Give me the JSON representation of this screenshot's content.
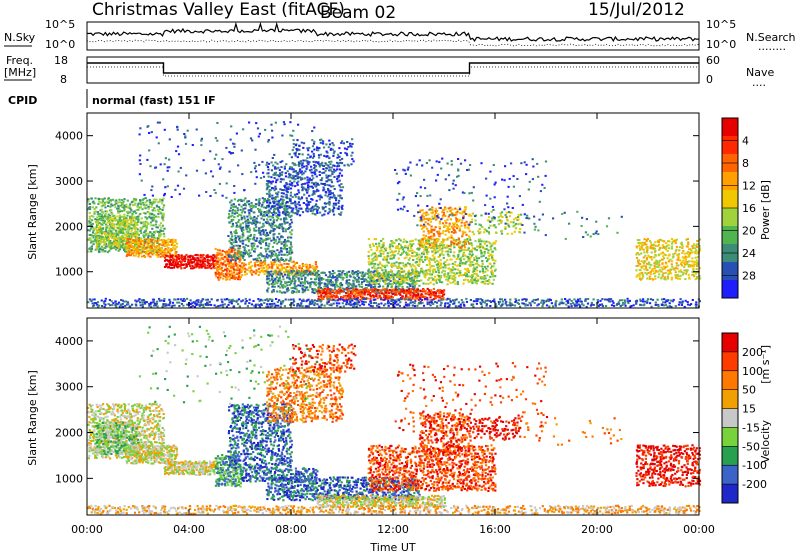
{
  "header": {
    "station": "Christmas Valley East (fitACF)",
    "beam": "Beam 02",
    "date": "15/Jul/2012"
  },
  "noise_panel": {
    "left_label": "N.Sky",
    "right_label": "N.Search",
    "right_legend": "........",
    "y_left_top": "10^5",
    "y_left_bottom": "10^0",
    "y_right_top": "10^5",
    "y_right_bottom": "10^0"
  },
  "freq_panel": {
    "left_label_1": "Freq.",
    "left_label_2": "[MHz]",
    "right_label": "Nave",
    "right_legend": "....",
    "y_left_top": "18",
    "y_left_bottom": "8",
    "y_right_top": "60",
    "y_right_bottom": "0"
  },
  "cpid": {
    "label": "CPID",
    "value": "normal (fast) 151 IF"
  },
  "chart_data": [
    {
      "type": "heatmap",
      "ylabel": "Slant Range [km]",
      "y_ticks": [
        "1000",
        "2000",
        "3000",
        "4000"
      ],
      "ylim": [
        200,
        4500
      ],
      "xlim_hours": [
        0,
        24
      ],
      "colorbar": {
        "label": "Power [dB]",
        "ticks": [
          "4",
          "8",
          "12",
          "16",
          "20",
          "24",
          "28"
        ],
        "colors": [
          "#1e1eff",
          "#2850b4",
          "#3c8c78",
          "#50b450",
          "#a0d23c",
          "#f0c800",
          "#ffa000",
          "#ff6400",
          "#ff2800",
          "#e60000"
        ]
      }
    },
    {
      "type": "heatmap",
      "ylabel": "Slant Range [km]",
      "y_ticks": [
        "1000",
        "2000",
        "3000",
        "4000"
      ],
      "ylim": [
        200,
        4500
      ],
      "xlim_hours": [
        0,
        24
      ],
      "xlabel": "Time UT",
      "x_ticks": [
        "00:00",
        "04:00",
        "08:00",
        "12:00",
        "16:00",
        "20:00",
        "00:00"
      ],
      "colorbar": {
        "label": "Velocity",
        "label_units": "[m s⁻¹]",
        "ticks": [
          "200",
          "100",
          "50",
          "15",
          "-15",
          "-50",
          "-100",
          "-200"
        ],
        "colors": [
          "#1e28c8",
          "#3c64c8",
          "#28a050",
          "#78d23c",
          "#c8c8c8",
          "#f0a000",
          "#ff7800",
          "#ff3c00",
          "#e60000"
        ]
      }
    }
  ]
}
